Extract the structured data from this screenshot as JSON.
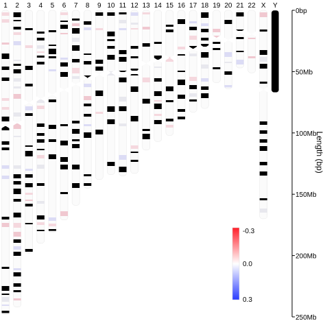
{
  "chart_data": {
    "type": "ideogram",
    "chromosomes": [
      {
        "label": "1",
        "length_mb": 248
      },
      {
        "label": "2",
        "length_mb": 242
      },
      {
        "label": "3",
        "length_mb": 198
      },
      {
        "label": "4",
        "length_mb": 190
      },
      {
        "label": "5",
        "length_mb": 181
      },
      {
        "label": "6",
        "length_mb": 171
      },
      {
        "label": "7",
        "length_mb": 159
      },
      {
        "label": "8",
        "length_mb": 145
      },
      {
        "label": "9",
        "length_mb": 138
      },
      {
        "label": "10",
        "length_mb": 134
      },
      {
        "label": "11",
        "length_mb": 135
      },
      {
        "label": "12",
        "length_mb": 133
      },
      {
        "label": "13",
        "length_mb": 114
      },
      {
        "label": "14",
        "length_mb": 107
      },
      {
        "label": "15",
        "length_mb": 102
      },
      {
        "label": "16",
        "length_mb": 90
      },
      {
        "label": "17",
        "length_mb": 83
      },
      {
        "label": "18",
        "length_mb": 80
      },
      {
        "label": "19",
        "length_mb": 59
      },
      {
        "label": "20",
        "length_mb": 64
      },
      {
        "label": "21",
        "length_mb": 47
      },
      {
        "label": "22",
        "length_mb": 51
      },
      {
        "label": "X",
        "length_mb": 170
      },
      {
        "label": "Y",
        "length_mb": 67
      }
    ],
    "y_axis": {
      "label": "Length (bp)",
      "ticks": [
        "0bp",
        "50Mb",
        "100Mb",
        "150Mb",
        "200Mb",
        "250Mb"
      ],
      "tick_values_mb": [
        0,
        50,
        100,
        150,
        200,
        250
      ],
      "range_mb": [
        0,
        250
      ]
    },
    "colorbar": {
      "ticks": [
        "-0.3",
        "0.0",
        "0.3"
      ],
      "tick_values": [
        -0.3,
        0.0,
        0.3
      ],
      "colors": [
        "#ff1f2a",
        "#ffffff",
        "#2a3cff"
      ]
    }
  }
}
